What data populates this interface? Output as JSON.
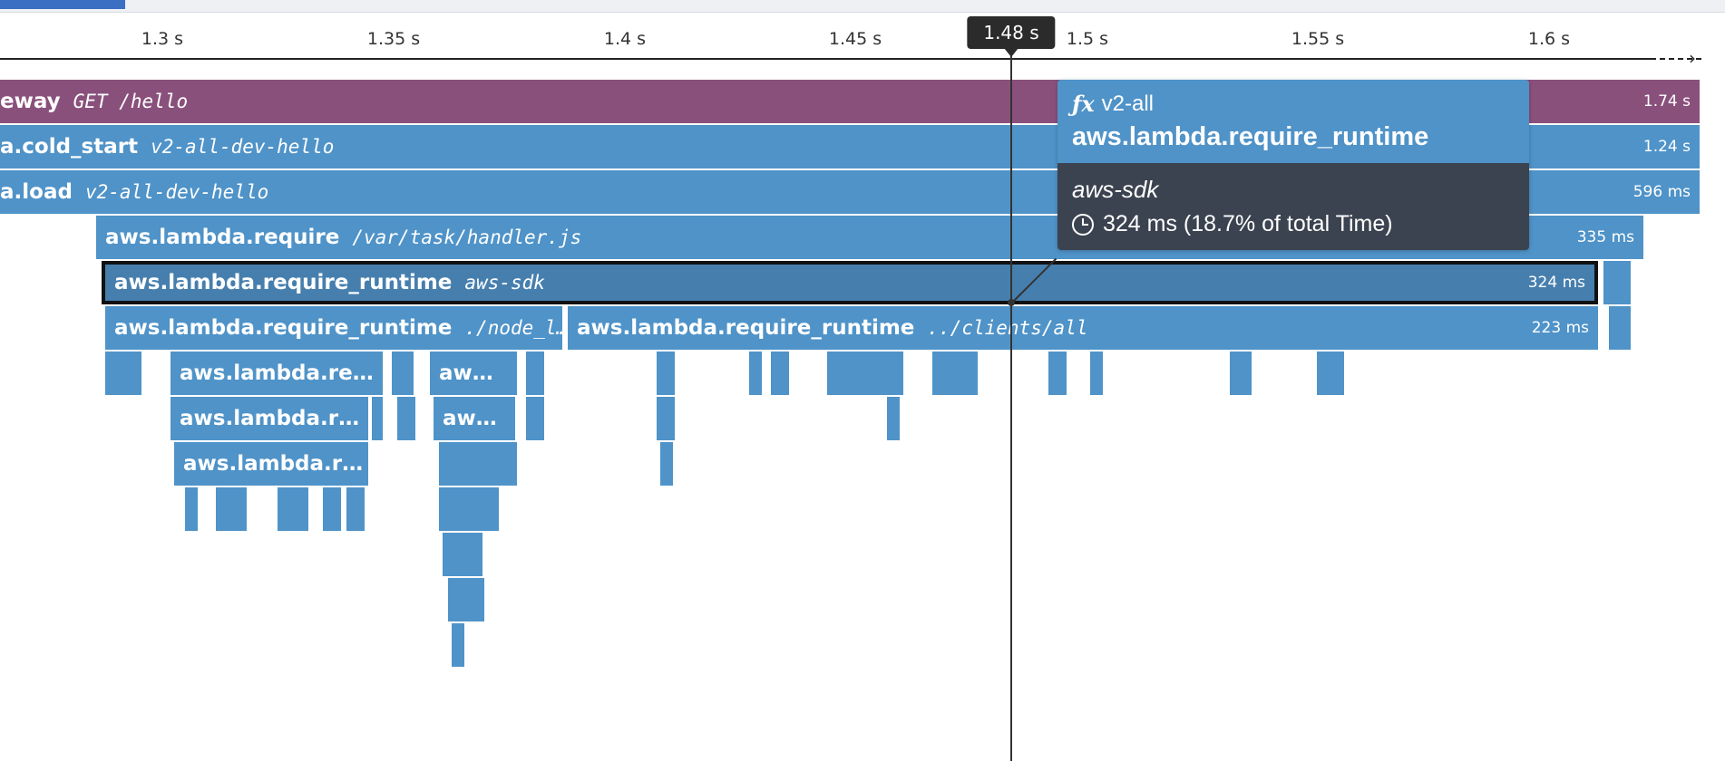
{
  "timeline": {
    "ticks": [
      "1.3 s",
      "1.35 s",
      "1.4 s",
      "1.45 s",
      "1.5 s",
      "1.55 s",
      "1.6 s"
    ],
    "cursor_label": "1.48 s"
  },
  "spans": [
    {
      "name": "eway",
      "resource": "GET /hello",
      "duration": "1.74 s",
      "kind": "gateway"
    },
    {
      "name": "a.cold_start",
      "resource": "v2-all-dev-hello",
      "duration": "1.24 s"
    },
    {
      "name": "a.load",
      "resource": "v2-all-dev-hello",
      "duration": "596 ms"
    },
    {
      "name": "aws.lambda.require",
      "resource": "/var/task/handler.js",
      "duration": "335 ms"
    },
    {
      "name": "aws.lambda.require_runtime",
      "resource": "aws-sdk",
      "duration": "324 ms",
      "selected": true
    },
    {
      "name": "aws.lambda.require_runtime",
      "resource": "./node_l…",
      "duration": ""
    },
    {
      "name": "aws.lambda.require_runtime",
      "resource": "../clients/all",
      "duration": "223 ms"
    },
    {
      "name": "aws.lambda.re…",
      "resource": "",
      "duration": ""
    },
    {
      "name": "aw…",
      "resource": "",
      "duration": ""
    },
    {
      "name": "aws.lambda.r…",
      "resource": "",
      "duration": ""
    },
    {
      "name": "aw…",
      "resource": "",
      "duration": ""
    },
    {
      "name": "aws.lambda.r…",
      "resource": "",
      "duration": ""
    }
  ],
  "tooltip": {
    "service": "v2-all",
    "operation": "aws.lambda.require_runtime",
    "resource": "aws-sdk",
    "duration": "324 ms (18.7% of total Time)"
  },
  "colors": {
    "span_blue": "#4f93c8",
    "span_gateway": "#8a507c",
    "span_selected": "#467fae",
    "tooltip_dark": "#3b4350",
    "cursor_badge": "#2b2b2b"
  },
  "icons": {
    "service": "function-icon",
    "duration": "clock-icon"
  }
}
